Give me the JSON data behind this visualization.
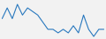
{
  "x": [
    0,
    1,
    2,
    3,
    4,
    5,
    6,
    7,
    8,
    9,
    10,
    11,
    12,
    13,
    14,
    15,
    16,
    17,
    18,
    19,
    20
  ],
  "y": [
    5,
    8,
    5,
    9,
    6,
    8,
    7,
    6,
    4,
    2,
    2,
    1,
    2,
    1,
    3,
    1,
    6,
    2,
    0,
    2,
    2
  ],
  "line_color": "#2878BE",
  "linewidth": 0.8,
  "background_color": "#f2f2f2"
}
